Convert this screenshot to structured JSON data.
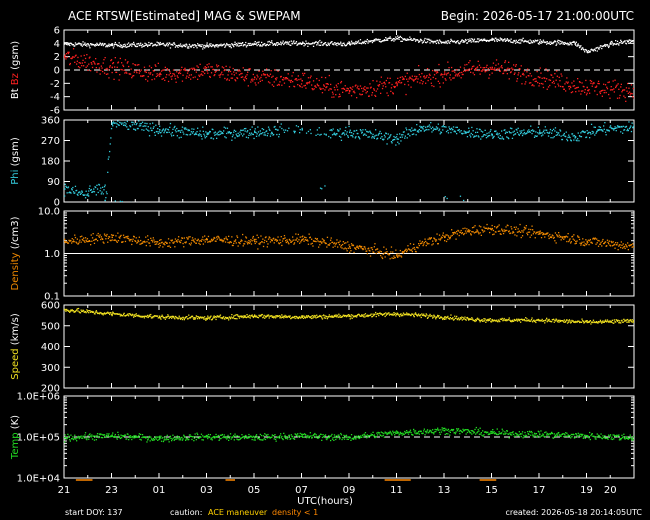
{
  "header": {
    "title": "ACE RTSW[Estimated] MAG & SWEPAM",
    "begin": "Begin: 2026-05-17 21:00:00UTC"
  },
  "footer": {
    "start_doy": "start DOY: 137",
    "caution": "caution:",
    "maneuver": "ACE maneuver",
    "density_note": "density < 1",
    "created": "created: 2026-05-18 20:14:05UTC"
  },
  "colors": {
    "background": "#000000",
    "axes": "#ffffff",
    "bt": "#ffffff",
    "bz": "#ff2020",
    "phi": "#33ccdd",
    "density": "#ee8800",
    "speed": "#f0e020",
    "temp": "#22dd22",
    "caution_maneuver": "#ffd000",
    "caution_density": "#ff8800"
  },
  "chart_data": [
    {
      "type": "scatter",
      "ylabel_parts": [
        "Bt",
        "Bz",
        "(gsm)"
      ],
      "ylim": [
        -6,
        6
      ],
      "yticks": [
        "6",
        "4",
        "2",
        "0",
        "-2",
        "-4",
        "-6"
      ],
      "reference_line": {
        "y": 0,
        "style": "dashed"
      },
      "x_range_hours": [
        0,
        24
      ],
      "series": [
        {
          "name": "Bt",
          "points": [
            [
              0,
              4.0
            ],
            [
              2,
              3.8
            ],
            [
              4,
              3.9
            ],
            [
              6,
              3.7
            ],
            [
              8,
              4.0
            ],
            [
              10,
              4.1
            ],
            [
              12,
              4.0
            ],
            [
              13,
              4.5
            ],
            [
              14,
              4.8
            ],
            [
              16,
              4.2
            ],
            [
              18,
              4.6
            ],
            [
              20,
              4.3
            ],
            [
              21.5,
              4.1
            ],
            [
              22,
              2.8
            ],
            [
              23,
              4.0
            ],
            [
              24,
              4.5
            ]
          ]
        },
        {
          "name": "Bz",
          "points": [
            [
              0,
              2.0
            ],
            [
              2,
              0.5
            ],
            [
              4,
              -0.5
            ],
            [
              6,
              0.0
            ],
            [
              8,
              -1.0
            ],
            [
              10,
              -1.5
            ],
            [
              11,
              -2.5
            ],
            [
              12,
              -3.0
            ],
            [
              14,
              -2.0
            ],
            [
              16,
              -0.5
            ],
            [
              18,
              0.5
            ],
            [
              20,
              -1.0
            ],
            [
              22,
              -2.5
            ],
            [
              24,
              -3.0
            ]
          ]
        }
      ]
    },
    {
      "type": "scatter",
      "ylabel": "Phi (gsm)",
      "ylim": [
        0,
        360
      ],
      "yticks": [
        "360",
        "270",
        "180",
        "90",
        "0"
      ],
      "x_range_hours": [
        0,
        24
      ],
      "series": [
        {
          "name": "Phi",
          "points": [
            [
              0,
              60
            ],
            [
              1,
              30
            ],
            [
              1.7,
              10
            ],
            [
              2,
              350
            ],
            [
              4,
              320
            ],
            [
              6,
              300
            ],
            [
              8,
              310
            ],
            [
              10,
              320
            ],
            [
              11,
              300
            ],
            [
              12,
              310
            ],
            [
              14,
              280
            ],
            [
              15,
              330
            ],
            [
              17,
              310
            ],
            [
              18,
              300
            ],
            [
              20,
              310
            ],
            [
              21.5,
              290
            ],
            [
              22.5,
              320
            ],
            [
              24,
              330
            ]
          ]
        }
      ]
    },
    {
      "type": "scatter",
      "ylabel": "Density (/cm3)",
      "yscale": "log",
      "ylim": [
        0.1,
        10
      ],
      "yticks": [
        "10.0",
        "1.0",
        "0.1"
      ],
      "reference_line": {
        "y": 1.0,
        "style": "solid"
      },
      "x_range_hours": [
        0,
        24
      ],
      "series": [
        {
          "name": "Density",
          "points": [
            [
              0,
              2.0
            ],
            [
              2,
              2.5
            ],
            [
              4,
              1.8
            ],
            [
              6,
              2.2
            ],
            [
              8,
              2.0
            ],
            [
              10,
              2.2
            ],
            [
              12,
              1.5
            ],
            [
              14,
              0.9
            ],
            [
              16,
              2.5
            ],
            [
              17,
              3.5
            ],
            [
              18,
              4.0
            ],
            [
              20,
              3.0
            ],
            [
              22,
              2.0
            ],
            [
              24,
              1.5
            ]
          ]
        }
      ]
    },
    {
      "type": "scatter",
      "ylabel": "Speed (km/s)",
      "ylim": [
        200,
        600
      ],
      "yticks": [
        "600",
        "500",
        "400",
        "300",
        "200"
      ],
      "x_range_hours": [
        0,
        24
      ],
      "series": [
        {
          "name": "Speed",
          "points": [
            [
              0,
              580
            ],
            [
              2,
              560
            ],
            [
              4,
              545
            ],
            [
              6,
              540
            ],
            [
              8,
              550
            ],
            [
              10,
              545
            ],
            [
              12,
              550
            ],
            [
              14,
              560
            ],
            [
              16,
              545
            ],
            [
              17,
              535
            ],
            [
              18,
              530
            ],
            [
              20,
              530
            ],
            [
              22,
              520
            ],
            [
              24,
              525
            ]
          ]
        }
      ]
    },
    {
      "type": "scatter",
      "ylabel": "Temp (K)",
      "yscale": "log",
      "ylim": [
        10000,
        1000000
      ],
      "yticks": [
        "1.0E+06",
        "1.0E+05",
        "1.0E+04"
      ],
      "reference_line": {
        "y": 100000,
        "style": "dashed"
      },
      "x_range_hours": [
        0,
        24
      ],
      "series": [
        {
          "name": "Temp",
          "points": [
            [
              0,
              100000
            ],
            [
              2,
              110000
            ],
            [
              4,
              95000
            ],
            [
              6,
              105000
            ],
            [
              8,
              100000
            ],
            [
              10,
              110000
            ],
            [
              12,
              100000
            ],
            [
              14,
              130000
            ],
            [
              16,
              150000
            ],
            [
              18,
              130000
            ],
            [
              20,
              120000
            ],
            [
              22,
              110000
            ],
            [
              24,
              100000
            ]
          ]
        }
      ]
    }
  ],
  "xaxis": {
    "label": "UTC(hours)",
    "ticks": [
      "21",
      "23",
      "01",
      "03",
      "05",
      "07",
      "09",
      "11",
      "13",
      "15",
      "17",
      "19",
      "20"
    ]
  }
}
